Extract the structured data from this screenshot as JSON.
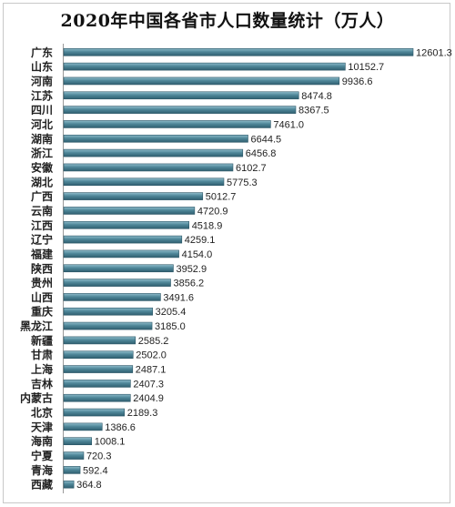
{
  "chart_data": {
    "type": "bar",
    "orientation": "horizontal",
    "title": "2020年中国各省市人口数量统计（万人）",
    "categories": [
      "广东",
      "山东",
      "河南",
      "江苏",
      "四川",
      "河北",
      "湖南",
      "浙江",
      "安徽",
      "湖北",
      "广西",
      "云南",
      "江西",
      "辽宁",
      "福建",
      "陕西",
      "贵州",
      "山西",
      "重庆",
      "黑龙江",
      "新疆",
      "甘肃",
      "上海",
      "吉林",
      "内蒙古",
      "北京",
      "天津",
      "海南",
      "宁夏",
      "青海",
      "西藏"
    ],
    "values": [
      12601.3,
      10152.7,
      9936.6,
      8474.8,
      8367.5,
      7461.0,
      6644.5,
      6456.8,
      6102.7,
      5775.3,
      5012.7,
      4720.9,
      4518.9,
      4259.1,
      4154.0,
      3952.9,
      3856.2,
      3491.6,
      3205.4,
      3185.0,
      2585.2,
      2502.0,
      2487.1,
      2407.3,
      2404.9,
      2189.3,
      1386.6,
      1008.1,
      720.3,
      592.4,
      364.8
    ],
    "value_labels": [
      "12601.3",
      "10152.7",
      "9936.6",
      "8474.8",
      "8367.5",
      "7461.0",
      "6644.5",
      "6456.8",
      "6102.7",
      "5775.3",
      "5012.7",
      "4720.9",
      "4518.9",
      "4259.1",
      "4154.0",
      "3952.9",
      "3856.2",
      "3491.6",
      "3205.4",
      "3185.0",
      "2585.2",
      "2502.0",
      "2487.1",
      "2407.3",
      "2404.9",
      "2189.3",
      "1386.6",
      "1008.1",
      "720.3",
      "592.4",
      "364.8"
    ],
    "xlim": [
      0,
      12601.3
    ],
    "grid": false,
    "bar_color": "#4a8294"
  }
}
